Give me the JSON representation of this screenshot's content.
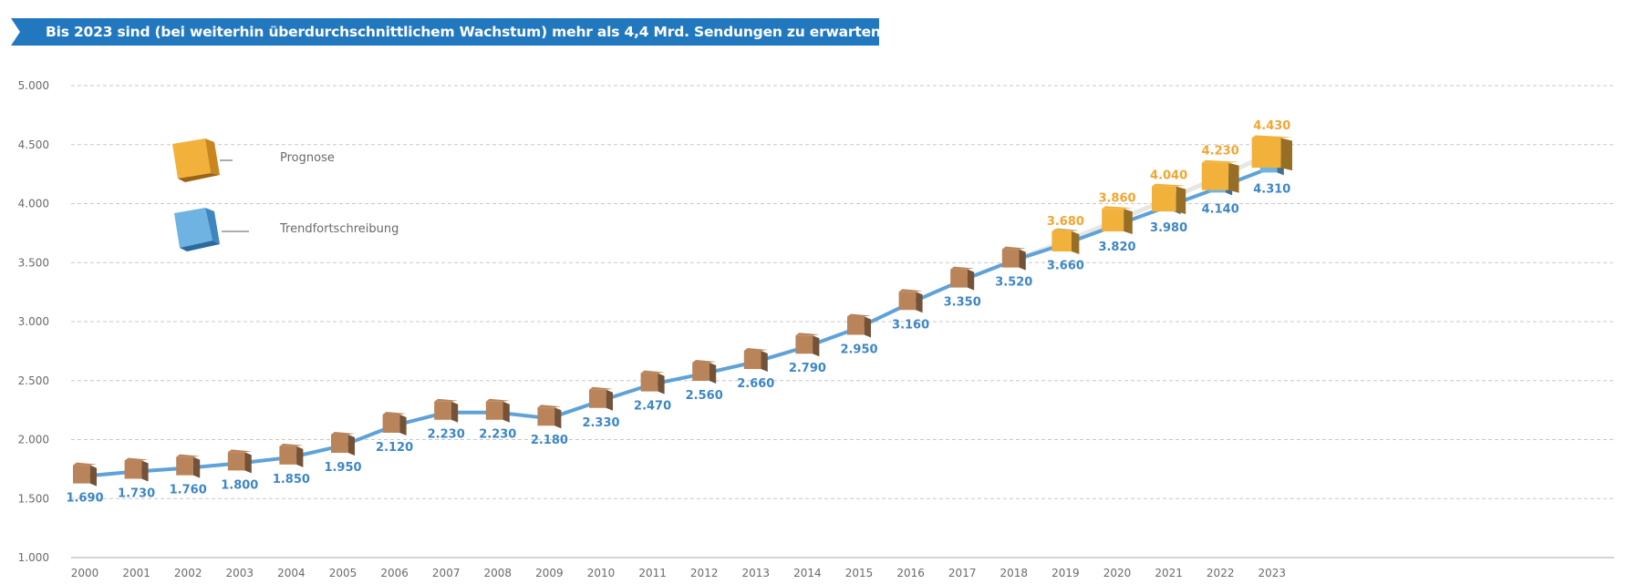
{
  "header": {
    "banner_text": "Bis 2023 sind (bei weiterhin überdurchschnittlichem Wachstum) mehr als 4,4 Mrd. Sendungen zu erwarten."
  },
  "colors": {
    "banner": "#2278bf",
    "trend_line": "#5ea2d8",
    "trend_label": "#3d86c6",
    "forecast_line": "#e8e6e2",
    "forecast_label": "#f2a531",
    "box_actual": "#b98459",
    "box_forecast": "#f2b13b",
    "box_trend": "#6fb3e3",
    "grid": "#c8c8c8",
    "axis_text": "#6a6a6a"
  },
  "legend": {
    "forecast_label": "Prognose",
    "forecast_icon": "orange-box-icon",
    "trend_label": "Trendfortschreibung",
    "trend_icon": "blue-box-icon"
  },
  "chart_data": {
    "type": "line",
    "title": "Bis 2023 sind (bei weiterhin überdurchschnittlichem Wachstum) mehr als 4,4 Mrd. Sendungen zu erwarten.",
    "x": [
      "2000",
      "2001",
      "2002",
      "2003",
      "2004",
      "2005",
      "2006",
      "2007",
      "2008",
      "2009",
      "2010",
      "2011",
      "2012",
      "2013",
      "2014",
      "2015",
      "2016",
      "2017",
      "2018",
      "2019",
      "2020",
      "2021",
      "2022",
      "2023"
    ],
    "y_ticks": [
      "1.000",
      "1.500",
      "2.000",
      "2.500",
      "3.000",
      "3.500",
      "4.000",
      "4.500",
      "5.000"
    ],
    "ylim": [
      1000,
      5000
    ],
    "grid": true,
    "legend_position": "top-left",
    "series": [
      {
        "name": "Trendfortschreibung",
        "x": [
          "2000",
          "2001",
          "2002",
          "2003",
          "2004",
          "2005",
          "2006",
          "2007",
          "2008",
          "2009",
          "2010",
          "2011",
          "2012",
          "2013",
          "2014",
          "2015",
          "2016",
          "2017",
          "2018",
          "2019",
          "2020",
          "2021",
          "2022",
          "2023"
        ],
        "values": [
          1690,
          1730,
          1760,
          1800,
          1850,
          1950,
          2120,
          2230,
          2230,
          2180,
          2330,
          2470,
          2560,
          2660,
          2790,
          2950,
          3160,
          3350,
          3520,
          3660,
          3820,
          3980,
          4140,
          4310
        ],
        "labels": [
          "1.690",
          "1.730",
          "1.760",
          "1.800",
          "1.850",
          "1.950",
          "2.120",
          "2.230",
          "2.230",
          "2.180",
          "2.330",
          "2.470",
          "2.560",
          "2.660",
          "2.790",
          "2.950",
          "3.160",
          "3.350",
          "3.520",
          "3.660",
          "3.820",
          "3.980",
          "4.140",
          "4.310"
        ]
      },
      {
        "name": "Prognose",
        "x": [
          "2019",
          "2020",
          "2021",
          "2022",
          "2023"
        ],
        "values": [
          3680,
          3860,
          4040,
          4230,
          4430
        ],
        "labels": [
          "3.680",
          "3.860",
          "4.040",
          "4.230",
          "4.430"
        ]
      }
    ]
  }
}
